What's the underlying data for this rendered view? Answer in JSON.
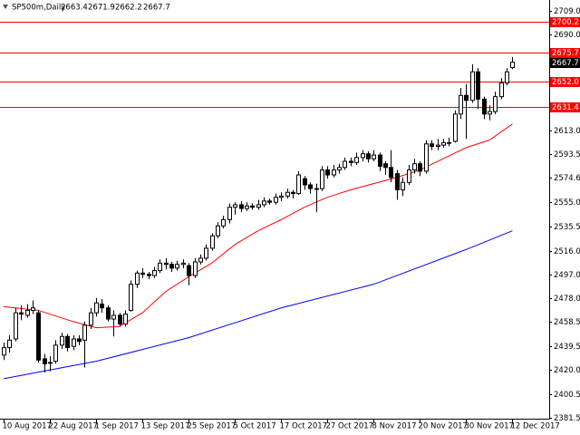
{
  "chart_data": {
    "type": "candlestick",
    "title": "SP500m,Daily",
    "categories": [
      "10 Aug 2017",
      null,
      null,
      null,
      null,
      null,
      null,
      null,
      "22 Aug 2017",
      null,
      null,
      null,
      null,
      null,
      null,
      null,
      "1 Sep 2017",
      null,
      null,
      null,
      null,
      null,
      null,
      null,
      "13 Sep 2017",
      null,
      null,
      null,
      null,
      null,
      null,
      null,
      "25 Sep 2017",
      null,
      null,
      null,
      null,
      null,
      null,
      null,
      "5 Oct 2017",
      null,
      null,
      null,
      null,
      null,
      null,
      null,
      "17 Oct 2017",
      null,
      null,
      null,
      null,
      null,
      null,
      null,
      "27 Oct 2017",
      null,
      null,
      null,
      null,
      null,
      null,
      null,
      "8 Nov 2017",
      null,
      null,
      null,
      null,
      null,
      null,
      null,
      "20 Nov 2017",
      null,
      null,
      null,
      null,
      null,
      null,
      null,
      "30 Nov 2017",
      null,
      null,
      null,
      null,
      null,
      null,
      null,
      "12 Dec 2017"
    ],
    "open": [
      2432,
      2438,
      2445,
      2466,
      2464,
      2468,
      2466,
      2429,
      2426,
      2427,
      2440,
      2447,
      2439,
      2445,
      2444,
      2456,
      2466,
      2473,
      2470,
      2461,
      2464,
      2457,
      2468,
      2489,
      2498,
      2497,
      2496,
      2500,
      2506,
      2505,
      2502,
      2505,
      2504,
      2496,
      2507,
      2510,
      2518,
      2528,
      2536,
      2541,
      2551,
      2553,
      2550,
      2552,
      2551,
      2553,
      2556,
      2555,
      2559,
      2560,
      2563,
      2562,
      2574,
      2569,
      2566,
      2566,
      2581,
      2577,
      2581,
      2583,
      2588,
      2587,
      2591,
      2594,
      2590,
      2593,
      2586,
      2583,
      2578,
      2565,
      2571,
      2581,
      2586,
      2580,
      2602,
      2600,
      2601,
      2603,
      2604,
      2626,
      2641,
      2637,
      2660,
      2638,
      2626,
      2628,
      2640,
      2651,
      2663.4
    ],
    "high": [
      2442,
      2448,
      2470,
      2472,
      2473,
      2476,
      2468,
      2433,
      2431,
      2444,
      2450,
      2449,
      2448,
      2448,
      2459,
      2470,
      2478,
      2477,
      2472,
      2468,
      2466,
      2468,
      2492,
      2500,
      2502,
      2499,
      2503,
      2509,
      2510,
      2507,
      2508,
      2509,
      2506,
      2510,
      2513,
      2521,
      2530,
      2539,
      2544,
      2554,
      2555,
      2556,
      2555,
      2554,
      2557,
      2559,
      2558,
      2562,
      2563,
      2566,
      2565,
      2580,
      2576,
      2571,
      2570,
      2584,
      2584,
      2585,
      2586,
      2591,
      2591,
      2595,
      2597,
      2596,
      2597,
      2595,
      2588,
      2597,
      2581,
      2575,
      2585,
      2590,
      2588,
      2605,
      2605,
      2606,
      2606,
      2607,
      2629,
      2647,
      2650,
      2666,
      2663,
      2640,
      2633,
      2644,
      2655,
      2663,
      2671.9
    ],
    "low": [
      2428,
      2434,
      2443,
      2460,
      2462,
      2465,
      2426,
      2418,
      2419,
      2425,
      2437,
      2435,
      2436,
      2440,
      2422,
      2453,
      2463,
      2466,
      2459,
      2447,
      2455,
      2455,
      2467,
      2486,
      2494,
      2493,
      2494,
      2498,
      2501,
      2499,
      2500,
      2502,
      2488,
      2494,
      2505,
      2508,
      2516,
      2526,
      2534,
      2538,
      2545,
      2547,
      2548,
      2549,
      2549,
      2551,
      2553,
      2553,
      2556,
      2558,
      2558,
      2561,
      2565,
      2562,
      2547,
      2564,
      2574,
      2575,
      2578,
      2581,
      2584,
      2585,
      2588,
      2587,
      2588,
      2580,
      2577,
      2571,
      2557,
      2560,
      2569,
      2578,
      2576,
      2578,
      2597,
      2597,
      2599,
      2600,
      2603,
      2622,
      2606,
      2635,
      2630,
      2622,
      2621,
      2626,
      2638,
      2649,
      2662.2
    ],
    "close": [
      2438,
      2444,
      2466,
      2465,
      2468,
      2470,
      2428,
      2425,
      2426,
      2440,
      2447,
      2438,
      2445,
      2443,
      2456,
      2466,
      2474,
      2470,
      2461,
      2464,
      2457,
      2465,
      2489,
      2498,
      2497,
      2496,
      2500,
      2506,
      2505,
      2502,
      2505,
      2506,
      2496,
      2507,
      2510,
      2518,
      2528,
      2536,
      2541,
      2551,
      2553,
      2550,
      2552,
      2551,
      2553,
      2556,
      2555,
      2559,
      2560,
      2563,
      2562,
      2577,
      2569,
      2566,
      2566,
      2581,
      2577,
      2581,
      2583,
      2588,
      2587,
      2591,
      2594,
      2590,
      2593,
      2584,
      2583,
      2575,
      2565,
      2571,
      2581,
      2586,
      2580,
      2602,
      2600,
      2601,
      2603,
      2603,
      2626,
      2641,
      2637,
      2660,
      2638,
      2626,
      2628,
      2640,
      2651,
      2660,
      2667.7
    ],
    "up_color": "#ffffff",
    "down_color": "#000000",
    "overlays": [
      {
        "color": "#ff0000",
        "x": [
          0,
          6,
          12,
          16,
          20,
          24,
          28,
          32,
          36,
          40,
          44,
          48,
          52,
          56,
          60,
          64,
          68,
          72,
          76,
          80,
          84,
          88
        ],
        "values": [
          2471,
          2468,
          2459,
          2454,
          2455,
          2466,
          2483,
          2495,
          2506,
          2521,
          2532,
          2541,
          2551,
          2559,
          2565,
          2570,
          2575,
          2581,
          2590,
          2599,
          2605,
          2618
        ]
      },
      {
        "color": "#0000ff",
        "x": [
          0,
          16,
          32,
          48,
          64,
          80,
          88
        ],
        "values": [
          2413,
          2427,
          2446,
          2470,
          2489,
          2517,
          2532
        ]
      }
    ],
    "levels": {
      "color": "#ff0000",
      "values": [
        2700.2,
        2675.7,
        2652,
        2631.4
      ],
      "value_labels": [
        "2700.2",
        "2675.7",
        "2652.0",
        "2631.4"
      ]
    },
    "ylim": [
      2380.8,
      2717.8
    ],
    "yticks": [
      {
        "value": 2709,
        "label": "2709.0"
      },
      {
        "value": 2690,
        "label": "2690.0"
      },
      {
        "value": 2613,
        "label": "2613.0"
      },
      2593.5,
      2574.6,
      {
        "value": 2555,
        "label": "2555.0"
      },
      2535.5,
      {
        "value": 2516,
        "label": "2516.0"
      },
      {
        "value": 2497,
        "label": "2497.0"
      },
      {
        "value": 2478,
        "label": "2478.0"
      },
      2458.5,
      2439.5,
      {
        "value": 2420,
        "label": "2420.0"
      },
      2400.5,
      2381.5
    ]
  }
}
